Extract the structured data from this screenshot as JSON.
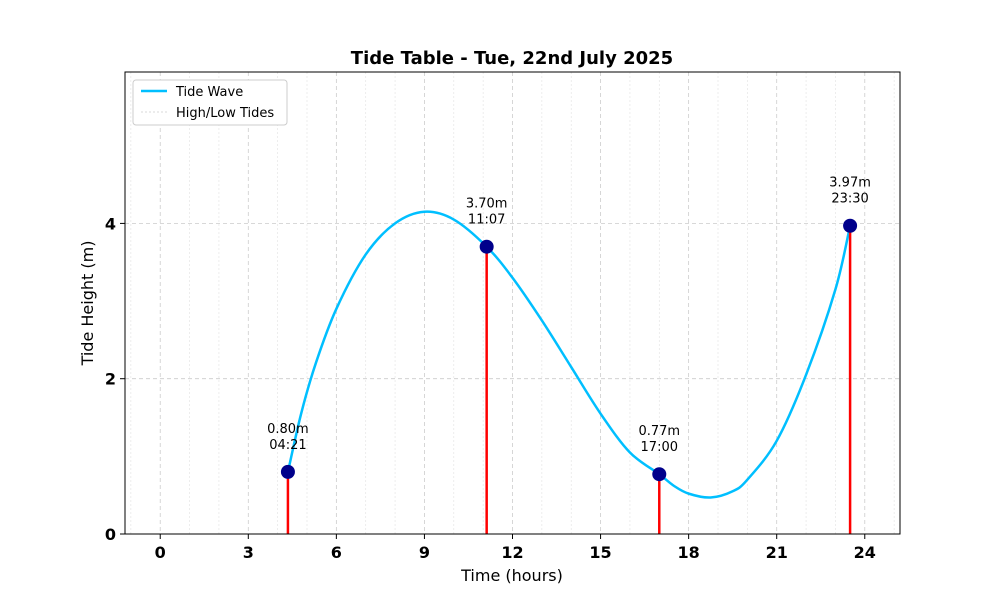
{
  "chart_data": {
    "type": "line",
    "title": "Tide Table - Tue, 22nd July 2025",
    "xlabel": "Time (hours)",
    "ylabel": "Tide Height (m)",
    "xlim": [
      -1.2,
      25.2
    ],
    "ylim": [
      0,
      5.95
    ],
    "x_ticks": [
      0,
      3,
      6,
      9,
      12,
      15,
      18,
      21,
      24
    ],
    "y_ticks": [
      0,
      2,
      4
    ],
    "minor_x_grid_step": 1,
    "grid": true,
    "legend_position": "top-left",
    "series": [
      {
        "name": "Tide Wave",
        "color": "#00bfff",
        "x": [
          4.35,
          4.8,
          5.3,
          6.0,
          7.0,
          8.0,
          9.0,
          10.0,
          11.12,
          12.0,
          13.0,
          14.0,
          15.0,
          16.0,
          17.0,
          17.5,
          18.0,
          18.75,
          19.5,
          20.0,
          21.0,
          22.0,
          23.0,
          23.5
        ],
        "y": [
          0.8,
          1.55,
          2.2,
          2.9,
          3.6,
          4.0,
          4.15,
          4.05,
          3.7,
          3.3,
          2.75,
          2.15,
          1.55,
          1.05,
          0.77,
          0.62,
          0.52,
          0.47,
          0.55,
          0.7,
          1.2,
          2.05,
          3.15,
          3.97
        ]
      }
    ],
    "tide_points": {
      "name": "High/Low Tides",
      "marker_color": "#00008b",
      "line_color": "#ff0000",
      "points": [
        {
          "x": 4.35,
          "y": 0.8,
          "height": "0.80m",
          "time": "04:21"
        },
        {
          "x": 11.12,
          "y": 3.7,
          "height": "3.70m",
          "time": "11:07"
        },
        {
          "x": 17.0,
          "y": 0.77,
          "height": "0.77m",
          "time": "17:00"
        },
        {
          "x": 23.5,
          "y": 3.97,
          "height": "3.97m",
          "time": "23:30"
        }
      ]
    }
  }
}
